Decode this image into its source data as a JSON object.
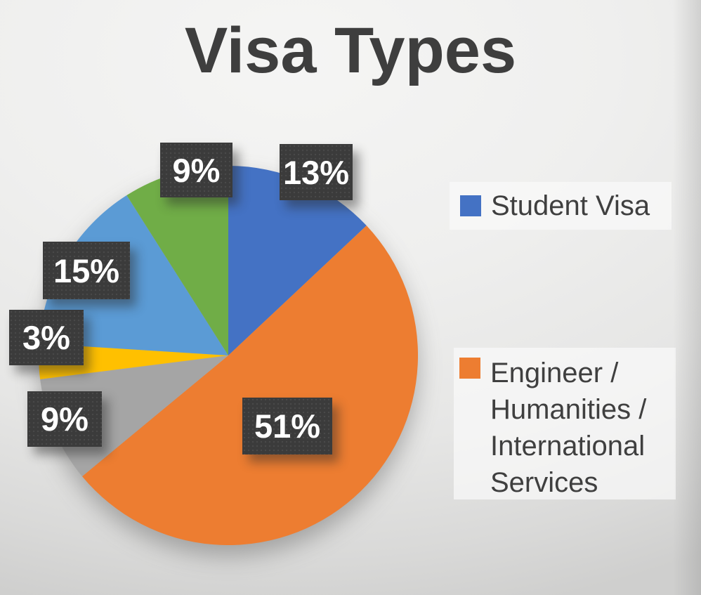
{
  "chart_data": {
    "type": "pie",
    "title": "Visa Types",
    "total": 100,
    "direction": "clockwise",
    "start_angle_deg": 0,
    "slices": [
      {
        "name": "Student Visa",
        "value": 13,
        "percent_label": "13%",
        "color": "#4472C4"
      },
      {
        "name": "Engineer / Humanities / International Services",
        "value": 51,
        "percent_label": "51%",
        "color": "#ED7D31"
      },
      {
        "value": 9,
        "percent_label": "9%",
        "color": "#A5A5A5"
      },
      {
        "value": 3,
        "percent_label": "3%",
        "color": "#FFC000"
      },
      {
        "value": 15,
        "percent_label": "15%",
        "color": "#5B9BD5"
      },
      {
        "value": 9,
        "percent_label": "9%",
        "color": "#70AD47"
      }
    ],
    "legend": {
      "position": "right",
      "items": [
        {
          "label": "Student Visa",
          "color": "#4472C4"
        },
        {
          "label": "Engineer / Humanities / International Services",
          "color": "#ED7D31"
        }
      ]
    },
    "data_labels": {
      "background": "#3B3B3B",
      "text_color": "#FFFFFF"
    }
  }
}
